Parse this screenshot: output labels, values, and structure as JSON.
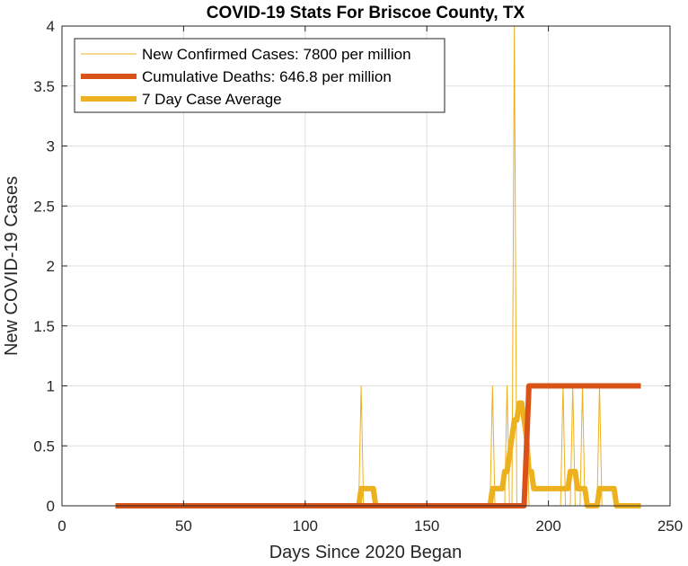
{
  "chart_data": {
    "type": "line",
    "title": "COVID-19 Stats For Briscoe County, TX",
    "xlabel": "Days Since 2020 Began",
    "ylabel": "New COVID-19 Cases",
    "xlim": [
      0,
      250
    ],
    "ylim": [
      0,
      4
    ],
    "xticks": [
      0,
      50,
      100,
      150,
      200,
      250
    ],
    "yticks": [
      0,
      0.5,
      1,
      1.5,
      2,
      2.5,
      3,
      3.5,
      4
    ],
    "xtick_labels": [
      "0",
      "50",
      "100",
      "150",
      "200",
      "250"
    ],
    "ytick_labels": [
      "0",
      "0.5",
      "1",
      "1.5",
      "2",
      "2.5",
      "3",
      "3.5",
      "4"
    ],
    "grid": true,
    "legend_position": "top-left",
    "series": [
      {
        "name": "New Confirmed Cases: 7800 per million",
        "color": "#EDB120",
        "style": "thin",
        "x": [
          22,
          122,
          123,
          124,
          176,
          177,
          178,
          182,
          183,
          184,
          185,
          186,
          187,
          190,
          191,
          192,
          205,
          206,
          207,
          209,
          210,
          211,
          213,
          214,
          215,
          220,
          221,
          222,
          238
        ],
        "y": [
          0,
          0,
          1,
          0,
          0,
          1,
          0,
          0,
          1,
          0,
          0,
          4,
          0,
          0,
          1,
          0,
          0,
          1,
          0,
          0,
          1,
          0,
          0,
          1,
          0,
          0,
          1,
          0,
          0
        ]
      },
      {
        "name": "Cumulative Deaths: 646.8 per million",
        "color": "#D95319",
        "style": "thick",
        "x": [
          22,
          190,
          192,
          238
        ],
        "y": [
          0,
          0,
          1,
          1
        ]
      },
      {
        "name": "7 Day Case Average",
        "color": "#EDB120",
        "style": "thick",
        "x": [
          22,
          122,
          123,
          128,
          129,
          176,
          177,
          181,
          182,
          183,
          184,
          185,
          186,
          187,
          188,
          189,
          190,
          191,
          192,
          193,
          194,
          205,
          206,
          208,
          209,
          210,
          211,
          212,
          213,
          215,
          216,
          220,
          221,
          227,
          228,
          238
        ],
        "y": [
          0,
          0,
          0.143,
          0.143,
          0,
          0,
          0.143,
          0.143,
          0.286,
          0.286,
          0.429,
          0.571,
          0.714,
          0.714,
          0.857,
          0.857,
          0.714,
          0.571,
          0.286,
          0.286,
          0.143,
          0.143,
          0.143,
          0.143,
          0.286,
          0.286,
          0.286,
          0.143,
          0.143,
          0.143,
          0,
          0,
          0.143,
          0.143,
          0,
          0
        ]
      }
    ]
  }
}
